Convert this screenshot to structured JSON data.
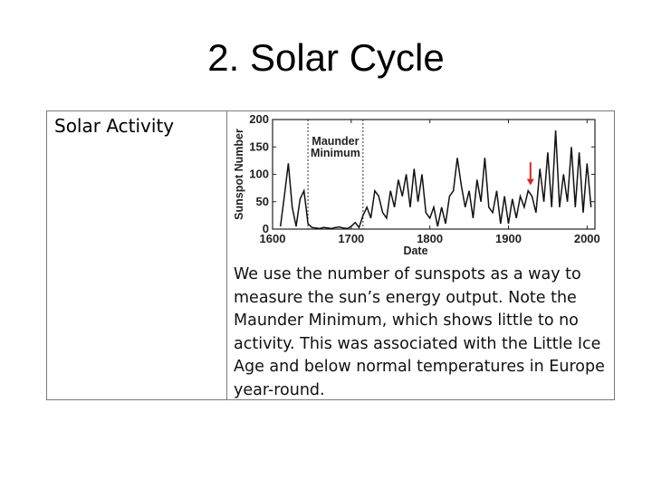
{
  "slide": {
    "title": "2. Solar Cycle"
  },
  "table": {
    "label": "Solar Activity",
    "description": "We use the number of sunspots as a way to measure the sun’s energy output. Note the Maunder Minimum, which shows little to no activity. This was associated with the Little Ice Age and below normal temperatures  in Europe year-round."
  },
  "chart_data": {
    "type": "line",
    "xlabel": "Date",
    "ylabel": "Sunspot Number",
    "xlim": [
      1600,
      2010
    ],
    "ylim": [
      0,
      200
    ],
    "x_ticks": [
      1600,
      1700,
      1800,
      1900,
      2000
    ],
    "y_ticks": [
      0,
      50,
      100,
      150,
      200
    ],
    "annotation": {
      "text_lines": [
        "Maunder",
        "Minimum"
      ],
      "x_start": 1645,
      "x_end": 1715
    },
    "arrow": {
      "x": 1928,
      "y_from": 122,
      "y_to": 80,
      "color": "#d62728"
    },
    "series": [
      {
        "x": [
          1610,
          1615,
          1620,
          1625,
          1630,
          1635,
          1640,
          1645,
          1650,
          1655,
          1660,
          1665,
          1670,
          1675,
          1680,
          1685,
          1690,
          1695,
          1700,
          1705,
          1710,
          1715,
          1720,
          1725,
          1730,
          1735,
          1740,
          1745,
          1750,
          1755,
          1760,
          1765,
          1770,
          1775,
          1780,
          1785,
          1790,
          1795,
          1800,
          1805,
          1810,
          1815,
          1820,
          1825,
          1830,
          1835,
          1840,
          1845,
          1850,
          1855,
          1860,
          1865,
          1870,
          1875,
          1880,
          1885,
          1890,
          1895,
          1900,
          1905,
          1910,
          1915,
          1920,
          1925,
          1930,
          1935,
          1940,
          1945,
          1950,
          1955,
          1960,
          1965,
          1970,
          1975,
          1980,
          1985,
          1990,
          1995,
          2000,
          2005
        ],
        "y": [
          5,
          60,
          120,
          40,
          5,
          55,
          70,
          10,
          3,
          2,
          1,
          3,
          2,
          1,
          3,
          4,
          2,
          1,
          5,
          12,
          3,
          25,
          40,
          20,
          70,
          60,
          30,
          20,
          70,
          40,
          90,
          60,
          100,
          40,
          110,
          50,
          100,
          30,
          20,
          40,
          5,
          40,
          10,
          60,
          70,
          130,
          80,
          40,
          70,
          20,
          90,
          50,
          130,
          40,
          30,
          70,
          10,
          60,
          10,
          55,
          20,
          60,
          40,
          70,
          60,
          30,
          110,
          50,
          140,
          40,
          180,
          40,
          100,
          50,
          150,
          40,
          140,
          30,
          120,
          40
        ]
      }
    ]
  }
}
